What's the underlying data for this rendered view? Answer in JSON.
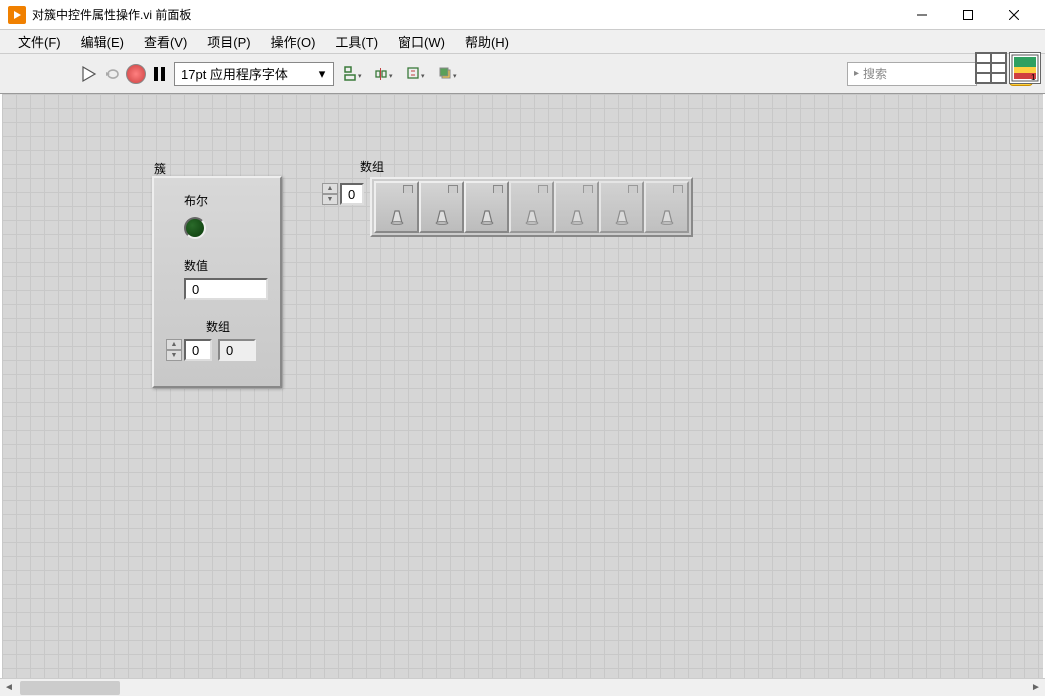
{
  "window": {
    "title": "对簇中控件属性操作.vi 前面板"
  },
  "menu": {
    "file": "文件(F)",
    "edit": "编辑(E)",
    "view": "查看(V)",
    "project": "项目(P)",
    "operate": "操作(O)",
    "tools": "工具(T)",
    "window": "窗口(W)",
    "help": "帮助(H)"
  },
  "toolbar": {
    "font": "17pt 应用程序字体",
    "search_placeholder": "搜索",
    "help_glyph": "?"
  },
  "cluster": {
    "label": "簇",
    "bool_label": "布尔",
    "numeric_label": "数值",
    "numeric_value": "0",
    "array_label": "数组",
    "array_index": "0",
    "array_value": "0"
  },
  "array2": {
    "label": "数组",
    "index": "0",
    "elements": 7,
    "active_elements": 3
  },
  "colors": {
    "canvas_bg": "#d6d6d6",
    "grid": "#c8c8c8",
    "panel_bg": "#d0d0d0",
    "led_off": "#0a3a0a",
    "accent": "#f08000"
  }
}
